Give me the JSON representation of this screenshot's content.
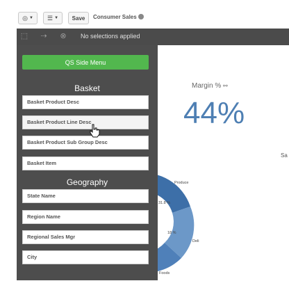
{
  "toolbar": {
    "nav_icon": "compass-icon",
    "list_icon": "list-icon",
    "save_label": "Save",
    "app_title": "Consumer Sales"
  },
  "selections": {
    "text": "No selections applied"
  },
  "side_menu": {
    "button_label": "QS Side Menu",
    "groups": [
      {
        "title": "Basket",
        "fields": [
          "Basket Product Desc",
          "Basket Product Line Desc",
          "Basket Product Sub Group Desc",
          "Basket Item"
        ]
      },
      {
        "title": "Geography",
        "fields": [
          "State Name",
          "Region Name",
          "Regional Sales Mgr",
          "City"
        ]
      }
    ]
  },
  "kpi": {
    "label": "Margin %",
    "value": "44%"
  },
  "right_label": "Sa",
  "donut": {
    "labels": [
      "Produce",
      "31.8 %",
      "18 %",
      "Deli",
      "Foods"
    ]
  },
  "colors": {
    "accent_green": "#52b74e",
    "kpi_blue": "#4e7fb3",
    "menu_bg": "#4d4d4d"
  }
}
